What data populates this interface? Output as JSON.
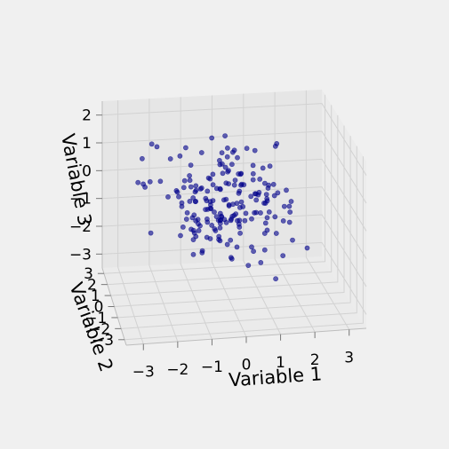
{
  "chart_data": {
    "type": "scatter",
    "dimensions": 3,
    "xlabel": "Variable 1",
    "ylabel": "Variable 2",
    "zlabel": "Variable 3",
    "xlim": [
      -3.5,
      3.5
    ],
    "ylim": [
      -3.5,
      3.5
    ],
    "zlim": [
      -3.5,
      2.5
    ],
    "x_ticks": [
      "−3",
      "−2",
      "−1",
      "0",
      "1",
      "2",
      "3"
    ],
    "y_ticks": [
      "−3",
      "−2",
      "−1",
      "0",
      "1",
      "2",
      "3"
    ],
    "z_ticks": [
      "−3",
      "−2",
      "−1",
      "0",
      "1",
      "2"
    ],
    "grid": true,
    "marker_color": "#00008b",
    "point_count": 200,
    "distribution": "standard normal (approx.), each variable mean 0, sd 1"
  }
}
